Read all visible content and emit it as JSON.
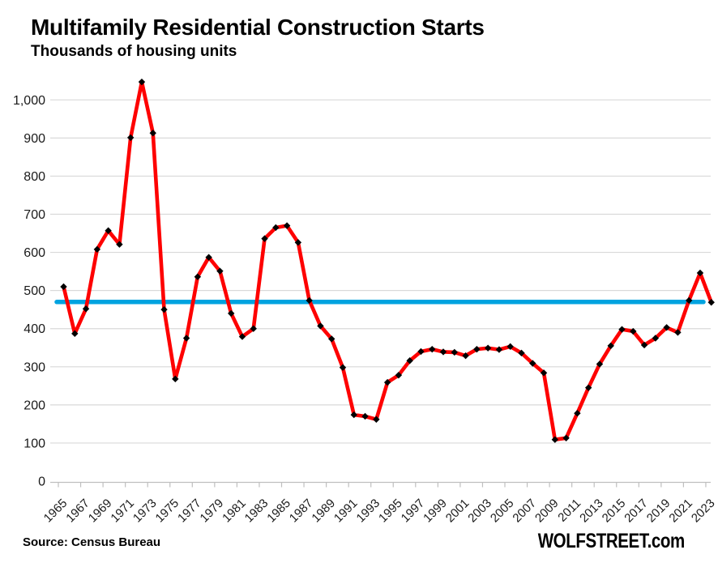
{
  "header": {
    "title": "Multifamily Residential Construction Starts",
    "subtitle": "Thousands of housing units"
  },
  "footer": {
    "source": "Source: Census Bureau",
    "brand": "WOLFSTREET.com"
  },
  "colors": {
    "series": "#fe0000",
    "marker": "#000000",
    "reference_line": "#00a3e0",
    "gridline": "#d9d9d9",
    "axis": "#bfbfbf",
    "text": "#1a1a1a",
    "background": "#ffffff"
  },
  "chart_data": {
    "type": "line",
    "title": "Multifamily Residential Construction Starts",
    "subtitle": "Thousands of housing units",
    "xlabel": "",
    "ylabel": "Thousands of housing units",
    "grid": "horizontal-only",
    "legend": "none",
    "ylim": [
      0,
      1050
    ],
    "yticks": [
      0,
      100,
      200,
      300,
      400,
      500,
      600,
      700,
      800,
      900,
      1000
    ],
    "ytick_labels": [
      "0",
      "100",
      "200",
      "300",
      "400",
      "500",
      "600",
      "700",
      "800",
      "900",
      "1,000"
    ],
    "xtick_label_every_years": 2,
    "xtick_label_rotation_deg": 45,
    "x": [
      1965,
      1966,
      1967,
      1968,
      1969,
      1970,
      1971,
      1972,
      1973,
      1974,
      1975,
      1976,
      1977,
      1978,
      1979,
      1980,
      1981,
      1982,
      1983,
      1984,
      1985,
      1986,
      1987,
      1988,
      1989,
      1990,
      1991,
      1992,
      1993,
      1994,
      1995,
      1996,
      1997,
      1998,
      1999,
      2000,
      2001,
      2002,
      2003,
      2004,
      2005,
      2006,
      2007,
      2008,
      2009,
      2010,
      2011,
      2012,
      2013,
      2014,
      2015,
      2016,
      2017,
      2018,
      2019,
      2020,
      2021,
      2022,
      2023
    ],
    "series": [
      {
        "name": "Multifamily residential construction starts",
        "color": "#fe0000",
        "marker": "black-diamond",
        "values": [
          510,
          387,
          452,
          608,
          657,
          621,
          901,
          1047,
          913,
          450,
          268,
          375,
          536,
          587,
          551,
          440,
          379,
          400,
          636,
          665,
          670,
          626,
          474,
          407,
          373,
          298,
          174,
          170,
          162,
          259,
          278,
          316,
          340,
          346,
          339,
          338,
          329,
          346,
          349,
          345,
          353,
          336,
          309,
          284,
          109,
          113,
          178,
          245,
          307,
          355,
          398,
          393,
          357,
          375,
          403,
          390,
          474,
          546,
          469
        ]
      }
    ],
    "reference_line": {
      "value": 470,
      "color": "#00a3e0",
      "description": "horizontal reference line at the 2023 level (~470)"
    }
  }
}
